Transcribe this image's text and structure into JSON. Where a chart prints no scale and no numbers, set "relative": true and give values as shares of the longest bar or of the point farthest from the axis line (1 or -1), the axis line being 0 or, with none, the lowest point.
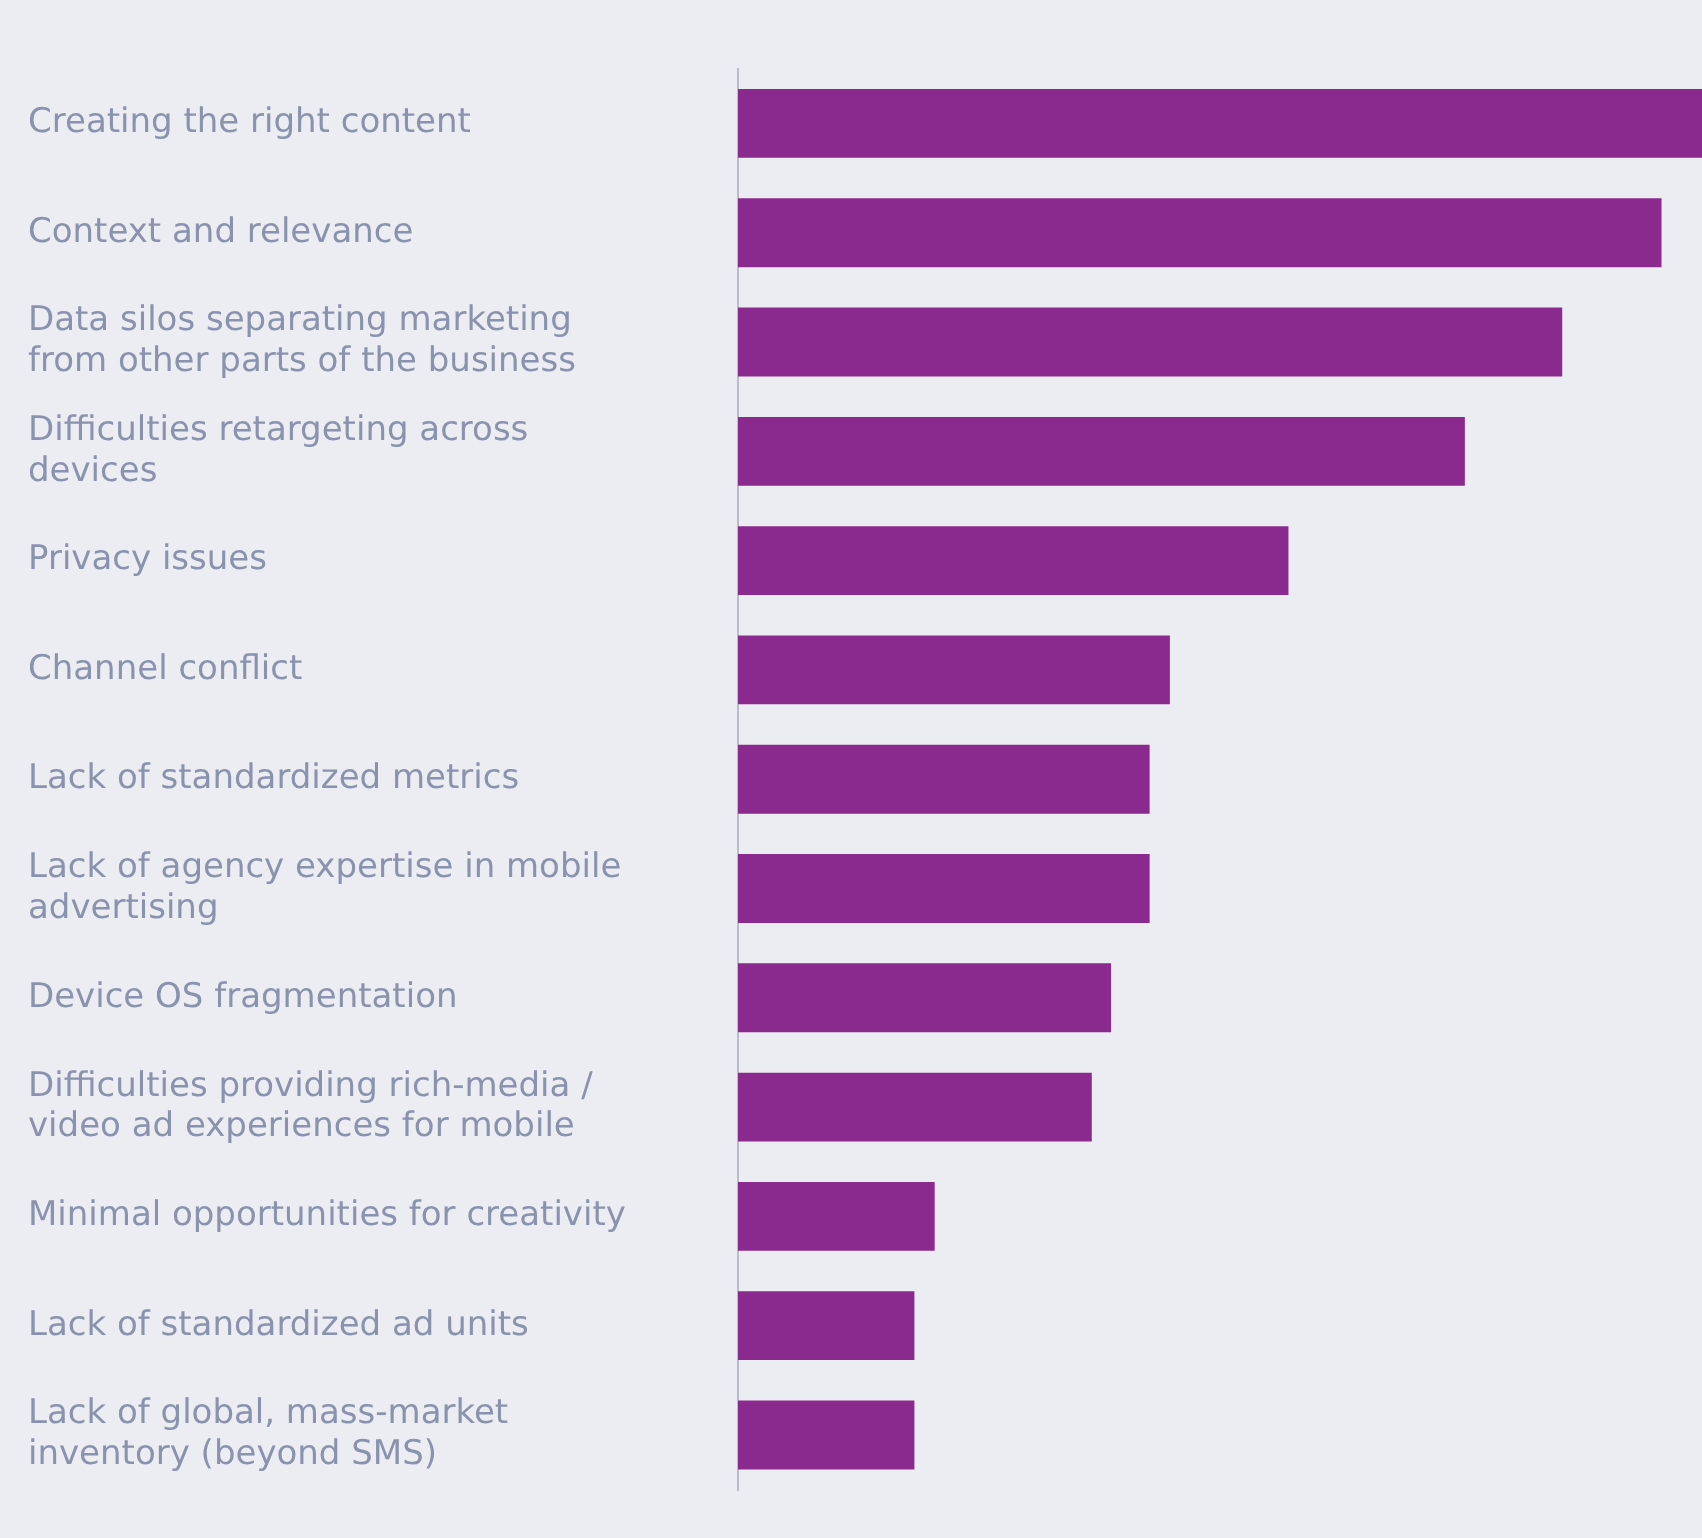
{
  "chart_data": {
    "type": "bar",
    "orientation": "horizontal",
    "relative": true,
    "categories": [
      "Creating the right content",
      "Context and relevance",
      "Data silos separating marketing from other parts of the business",
      "Difficulties retargeting across devices",
      "Privacy issues",
      "Channel conflict",
      "Lack of standardized metrics",
      "Lack of agency expertise in mobile advertising",
      "Device OS fragmentation",
      "Difficulties providing rich-media / video ad experiences for mobile",
      "Minimal opportunities for creativity",
      "Lack of standardized ad units",
      "Lack of global, mass-market inventory (beyond SMS)"
    ],
    "values": [
      1,
      0.958,
      0.855,
      0.754,
      0.571,
      0.448,
      0.427,
      0.427,
      0.387,
      0.367,
      0.204,
      0.183,
      0.183
    ],
    "color": "#8b2a8e"
  }
}
